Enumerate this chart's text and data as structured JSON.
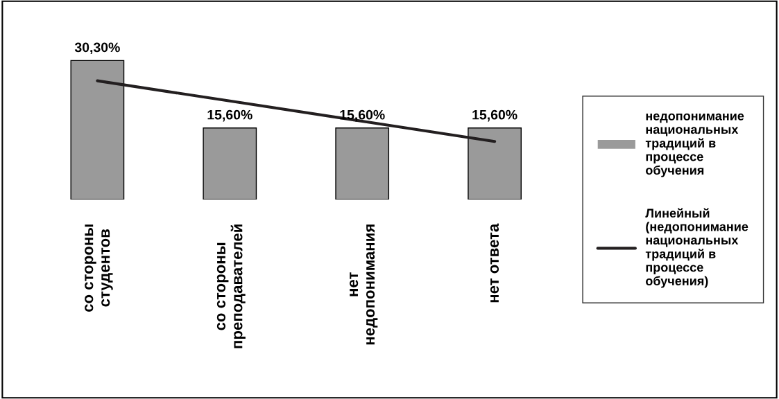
{
  "chart_data": {
    "type": "bar",
    "categories": [
      "со стороны студентов",
      "со стороны преподавателей",
      "нет недопонимания",
      "нет ответа"
    ],
    "series": [
      {
        "name": "недопонимание национальных традиций в процессе обучения",
        "color": "#9a9a9a",
        "values": [
          30.3,
          15.6,
          15.6,
          15.6
        ],
        "value_labels": [
          "30,30%",
          "15,60%",
          "15,60%",
          "15,60%"
        ]
      },
      {
        "name": "Линейный (недопонимание национальных традиций в процессе обучения)",
        "type": "line",
        "color": "#231f20",
        "values": [
          25.89,
          21.48,
          17.07,
          12.66
        ]
      }
    ],
    "legend": "right",
    "grid": false,
    "tick_labels": "x"
  }
}
